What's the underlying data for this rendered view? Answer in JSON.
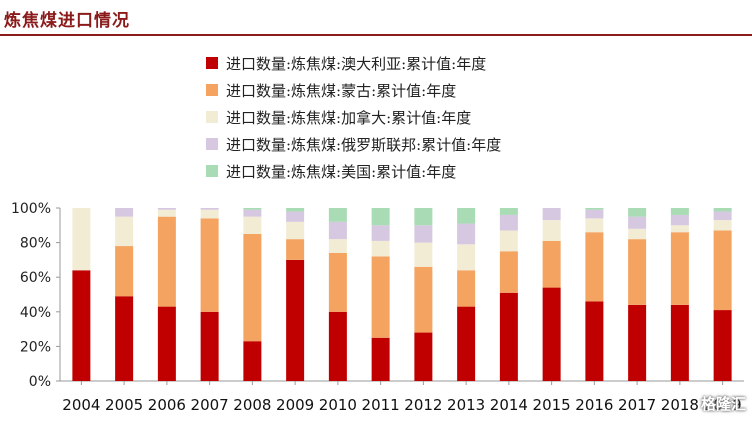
{
  "title": "炼焦煤进口情况",
  "watermark": "格隆汇",
  "chart_data": {
    "type": "bar",
    "stacked": true,
    "percent": true,
    "categories": [
      "2004",
      "2005",
      "2006",
      "2007",
      "2008",
      "2009",
      "2010",
      "2011",
      "2012",
      "2013",
      "2014",
      "2015",
      "2016",
      "2017",
      "2018",
      "2019"
    ],
    "y_ticks": [
      "0%",
      "20%",
      "40%",
      "60%",
      "80%",
      "100%"
    ],
    "ylim": [
      0,
      100
    ],
    "legend_position": "top",
    "series": [
      {
        "name": "进口数量:炼焦煤:澳大利亚:累计值:年度",
        "color": "#c00000",
        "values": [
          64,
          49,
          43,
          40,
          23,
          70,
          40,
          25,
          28,
          43,
          51,
          54,
          46,
          44,
          44,
          41
        ]
      },
      {
        "name": "进口数量:炼焦煤:蒙古:累计值:年度",
        "color": "#f4a460",
        "values": [
          0,
          29,
          52,
          54,
          62,
          12,
          34,
          47,
          38,
          21,
          24,
          27,
          40,
          38,
          42,
          46
        ]
      },
      {
        "name": "进口数量:炼焦煤:加拿大:累计值:年度",
        "color": "#f2ecd5",
        "values": [
          36,
          17,
          4,
          5,
          10,
          10,
          8,
          9,
          14,
          15,
          12,
          12,
          8,
          6,
          4,
          6
        ]
      },
      {
        "name": "进口数量:炼焦煤:俄罗斯联邦:累计值:年度",
        "color": "#d6c8e0",
        "values": [
          0,
          5,
          1,
          1,
          4,
          6,
          10,
          9,
          10,
          12,
          9,
          7,
          5,
          7,
          6,
          5
        ]
      },
      {
        "name": "进口数量:炼焦煤:美国:累计值:年度",
        "color": "#a9dbb4",
        "values": [
          0,
          0,
          0,
          0,
          1,
          2,
          8,
          10,
          10,
          9,
          4,
          0,
          1,
          5,
          4,
          2
        ]
      }
    ]
  }
}
